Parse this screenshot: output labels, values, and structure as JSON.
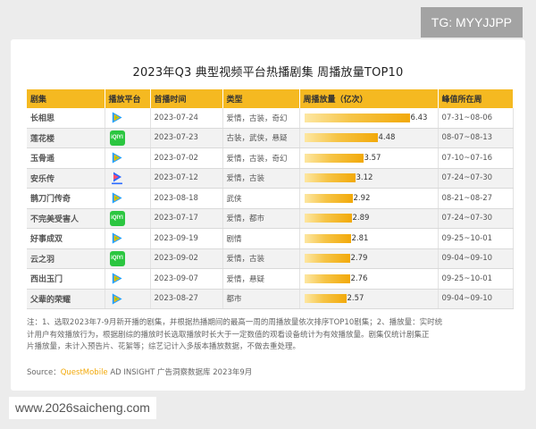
{
  "watermark_top": "TG: MYYJJPP",
  "watermark_bottom": "www.2026saicheng.com",
  "chart_data": {
    "type": "table",
    "title": "2023年Q3 典型视频平台热播剧集 周播放量TOP10",
    "columns": [
      "剧集",
      "播放平台",
      "首播时间",
      "类型",
      "周播放量（亿次）",
      "峰值所在周"
    ],
    "max_value": 6.43,
    "rows": [
      {
        "name": "长相思",
        "platform": "tencent",
        "premiere": "2023-07-24",
        "genre": "爱情，古装，奇幻",
        "value": 6.43,
        "value_label": "6.43",
        "peak_week": "07-31~08-06"
      },
      {
        "name": "莲花楼",
        "platform": "iqiyi",
        "premiere": "2023-07-23",
        "genre": "古装，武侠，悬疑",
        "value": 4.48,
        "value_label": "4.48",
        "peak_week": "08-07~08-13"
      },
      {
        "name": "玉骨遥",
        "platform": "tencent",
        "premiere": "2023-07-02",
        "genre": "爱情，古装，奇幻",
        "value": 3.57,
        "value_label": "3.57",
        "peak_week": "07-10~07-16"
      },
      {
        "name": "安乐传",
        "platform": "youku",
        "premiere": "2023-07-12",
        "genre": "爱情，古装",
        "value": 3.12,
        "value_label": "3.12",
        "peak_week": "07-24~07-30"
      },
      {
        "name": "鹊刀门传奇",
        "platform": "tencent",
        "premiere": "2023-08-18",
        "genre": "武侠",
        "value": 2.92,
        "value_label": "2.92",
        "peak_week": "08-21~08-27"
      },
      {
        "name": "不完美受害人",
        "platform": "iqiyi",
        "premiere": "2023-07-17",
        "genre": "爱情，都市",
        "value": 2.89,
        "value_label": "2.89",
        "peak_week": "07-24~07-30"
      },
      {
        "name": "好事成双",
        "platform": "tencent",
        "premiere": "2023-09-19",
        "genre": "剧情",
        "value": 2.81,
        "value_label": "2.81",
        "peak_week": "09-25~10-01"
      },
      {
        "name": "云之羽",
        "platform": "iqiyi",
        "premiere": "2023-09-02",
        "genre": "爱情，古装",
        "value": 2.79,
        "value_label": "2.79",
        "peak_week": "09-04~09-10"
      },
      {
        "name": "西出玉门",
        "platform": "tencent",
        "premiere": "2023-09-07",
        "genre": "爱情，悬疑",
        "value": 2.76,
        "value_label": "2.76",
        "peak_week": "09-25~10-01"
      },
      {
        "name": "父辈的荣耀",
        "platform": "tencent",
        "premiere": "2023-08-27",
        "genre": "都市",
        "value": 2.57,
        "value_label": "2.57",
        "peak_week": "09-04~09-10"
      }
    ],
    "colors": {
      "header": "#f5b921",
      "bar_start": "#fde7a2",
      "bar_end": "#f2a90a",
      "iqiyi": "#2bc640"
    }
  },
  "footnote": {
    "line1": "注：1、选取2023年7-9月新开播的剧集，并根据热播期间的最高一周的周播放量依次排序TOP10剧集；2、播放量：实时统",
    "line2": "计用户有效播放行为，根据剧综的播放时长选取播放时长大于一定数值的观看设备统计为有效播放量。剧集仅统计剧集正",
    "line3": "片播放量，未计入预告片、花絮等；综艺记计入多版本播放数据，不做去重处理。"
  },
  "source": {
    "prefix": "Source：",
    "brand": "QuestMobile",
    "rest": " AD INSIGHT 广告洞察数据库 2023年9月"
  },
  "icons": {
    "iqiyi_text": "iQIYI"
  }
}
